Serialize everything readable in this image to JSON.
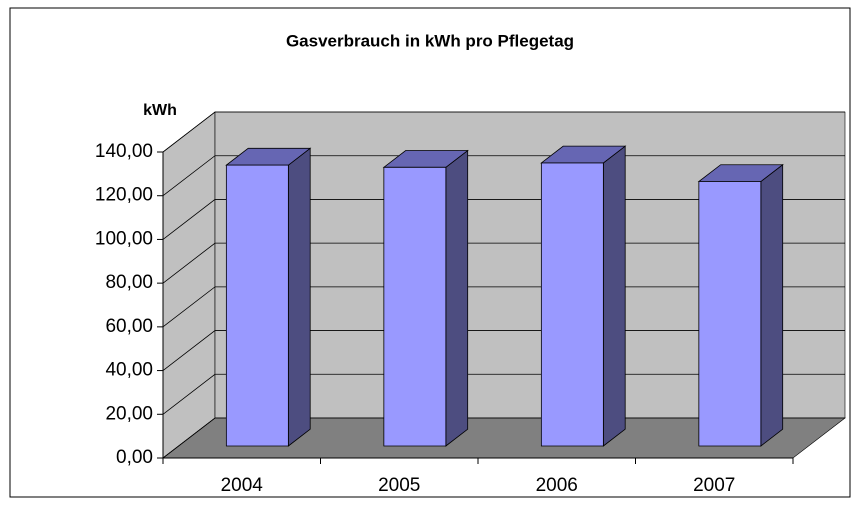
{
  "chart_data": {
    "type": "bar3d",
    "title": "Gasverbrauch in kWh pro Pflegetag",
    "y_label": "kWh",
    "categories": [
      "2004",
      "2005",
      "2006",
      "2007"
    ],
    "values": [
      128.5,
      127.5,
      129.5,
      121.0
    ],
    "color": "#9999ff",
    "ylim": [
      0,
      140
    ],
    "yticks": [
      {
        "value": 0,
        "label": "0,00"
      },
      {
        "value": 20,
        "label": "20,00"
      },
      {
        "value": 40,
        "label": "40,00"
      },
      {
        "value": 60,
        "label": "60,00"
      },
      {
        "value": 80,
        "label": "80,00"
      },
      {
        "value": 100,
        "label": "100,00"
      },
      {
        "value": 120,
        "label": "120,00"
      },
      {
        "value": 140,
        "label": "140,00"
      }
    ],
    "grid": true
  }
}
